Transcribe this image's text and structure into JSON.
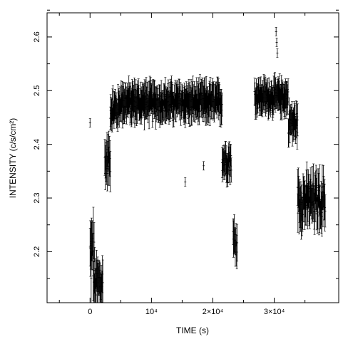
{
  "chart_data": {
    "type": "scatter",
    "title": "",
    "xlabel": "TIME (s)",
    "ylabel": "INTENSITY (c/s/cm²)",
    "xlim": [
      -7000,
      40500
    ],
    "ylim": [
      2.105,
      2.645
    ],
    "grid": false,
    "x_ticks": [
      {
        "value": 0,
        "label": "0"
      },
      {
        "value": 10000,
        "label": "10⁴"
      },
      {
        "value": 20000,
        "label": "2×10⁴"
      },
      {
        "value": 30000,
        "label": "3×10⁴"
      }
    ],
    "y_ticks": [
      {
        "value": 2.2,
        "label": "2.2"
      },
      {
        "value": 2.3,
        "label": "2.3"
      },
      {
        "value": 2.4,
        "label": "2.4"
      },
      {
        "value": 2.5,
        "label": "2.5"
      },
      {
        "value": 2.6,
        "label": "2.6"
      }
    ],
    "segments": [
      {
        "x_start": 0,
        "x_end": 700,
        "y_mean": 2.19,
        "y_spread": 0.06,
        "err": 0.04
      },
      {
        "x_start": 700,
        "x_end": 2100,
        "y_mean": 2.14,
        "y_spread": 0.03,
        "err": 0.035
      },
      {
        "x_start": 2400,
        "x_end": 3300,
        "y_mean": 2.37,
        "y_spread": 0.025,
        "err": 0.03
      },
      {
        "x_start": 3300,
        "x_end": 4700,
        "y_mean": 2.465,
        "y_spread": 0.02,
        "err": 0.025
      },
      {
        "x_start": 4700,
        "x_end": 21500,
        "y_mean": 2.478,
        "y_spread": 0.018,
        "err": 0.027
      },
      {
        "x_start": 21500,
        "x_end": 23000,
        "y_mean": 2.37,
        "y_spread": 0.02,
        "err": 0.025
      },
      {
        "x_start": 23300,
        "x_end": 24000,
        "y_mean": 2.22,
        "y_spread": 0.025,
        "err": 0.03
      },
      {
        "x_start": 26800,
        "x_end": 32300,
        "y_mean": 2.488,
        "y_spread": 0.015,
        "err": 0.025
      },
      {
        "x_start": 32300,
        "x_end": 33800,
        "y_mean": 2.44,
        "y_spread": 0.02,
        "err": 0.025
      },
      {
        "x_start": 33800,
        "x_end": 38300,
        "y_mean": 2.295,
        "y_spread": 0.03,
        "err": 0.035
      }
    ],
    "outliers": [
      {
        "x": 0,
        "y": 2.44
      },
      {
        "x": 30300,
        "y": 2.61
      },
      {
        "x": 30400,
        "y": 2.59
      },
      {
        "x": 30500,
        "y": 2.57
      },
      {
        "x": 15500,
        "y": 2.33
      },
      {
        "x": 18500,
        "y": 2.36
      }
    ]
  }
}
